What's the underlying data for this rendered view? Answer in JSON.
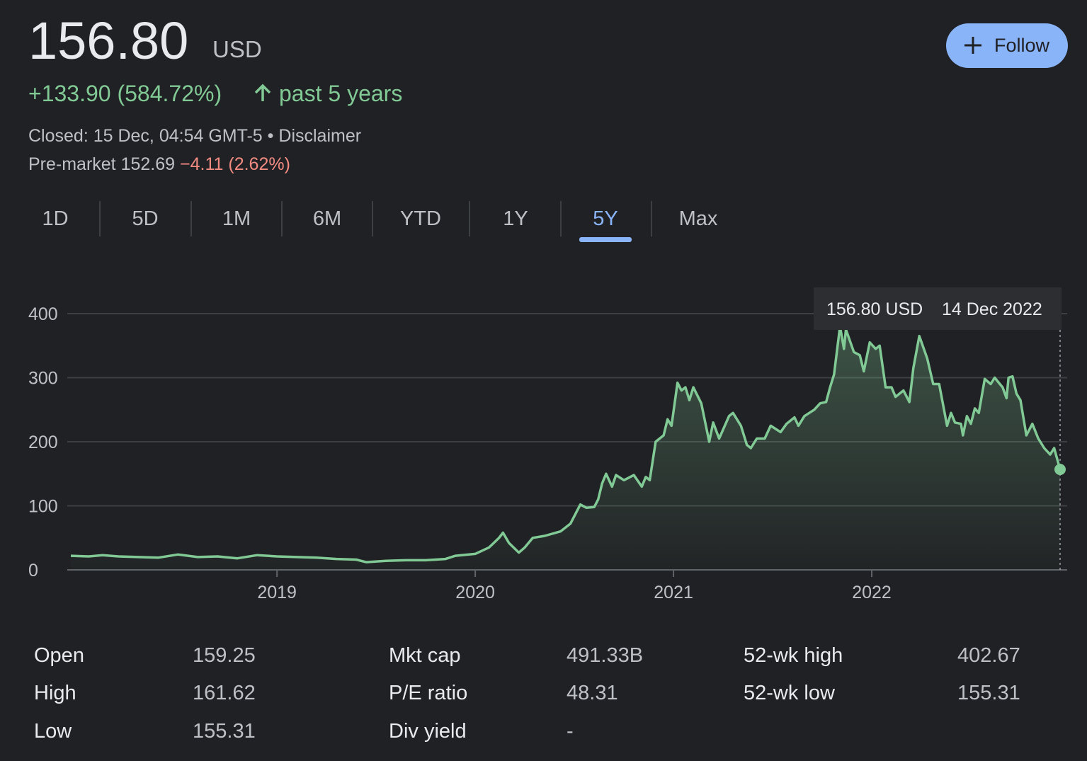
{
  "header": {
    "price": "156.80",
    "currency": "USD",
    "change": "+133.90 (584.72%)",
    "period": "past 5 years",
    "closed": "Closed: 15 Dec, 04:54 GMT-5",
    "separator": "•",
    "disclaimer": "Disclaimer",
    "premarket_label": "Pre-market",
    "premarket_price": "152.69",
    "premarket_change": "−4.11 (2.62%)"
  },
  "follow_button": "Follow",
  "tabs": {
    "items": [
      "1D",
      "5D",
      "1M",
      "6M",
      "YTD",
      "1Y",
      "5Y",
      "Max"
    ],
    "selected": 6
  },
  "chart_data": {
    "type": "line",
    "color": "#81c995",
    "grid": true,
    "xlim": [
      2017.96,
      2022.95
    ],
    "xticks": [
      2019,
      2020,
      2021,
      2022
    ],
    "ylim": [
      0,
      400
    ],
    "yticks": [
      0,
      100,
      200,
      300,
      400
    ],
    "tooltip": {
      "price": "156.80 USD",
      "date": "14 Dec 2022"
    },
    "x": [
      2017.96,
      2018.05,
      2018.12,
      2018.2,
      2018.3,
      2018.4,
      2018.5,
      2018.6,
      2018.7,
      2018.8,
      2018.9,
      2019.0,
      2019.1,
      2019.2,
      2019.3,
      2019.4,
      2019.45,
      2019.55,
      2019.65,
      2019.75,
      2019.85,
      2019.9,
      2020.0,
      2020.07,
      2020.12,
      2020.14,
      2020.17,
      2020.22,
      2020.25,
      2020.29,
      2020.35,
      2020.43,
      2020.48,
      2020.53,
      2020.56,
      2020.6,
      2020.62,
      2020.64,
      2020.66,
      2020.69,
      2020.71,
      2020.75,
      2020.8,
      2020.84,
      2020.86,
      2020.88,
      2020.91,
      2020.95,
      2020.97,
      2020.99,
      2021.02,
      2021.04,
      2021.06,
      2021.08,
      2021.1,
      2021.14,
      2021.18,
      2021.2,
      2021.23,
      2021.28,
      2021.3,
      2021.34,
      2021.37,
      2021.39,
      2021.42,
      2021.46,
      2021.49,
      2021.54,
      2021.57,
      2021.61,
      2021.63,
      2021.66,
      2021.71,
      2021.74,
      2021.77,
      2021.79,
      2021.81,
      2021.84,
      2021.86,
      2021.87,
      2021.91,
      2021.94,
      2021.96,
      2021.99,
      2022.02,
      2022.04,
      2022.07,
      2022.1,
      2022.12,
      2022.16,
      2022.19,
      2022.21,
      2022.24,
      2022.28,
      2022.31,
      2022.34,
      2022.38,
      2022.4,
      2022.42,
      2022.45,
      2022.46,
      2022.48,
      2022.5,
      2022.52,
      2022.54,
      2022.57,
      2022.6,
      2022.62,
      2022.66,
      2022.68,
      2022.69,
      2022.71,
      2022.73,
      2022.75,
      2022.78,
      2022.81,
      2022.84,
      2022.87,
      2022.9,
      2022.92,
      2022.95
    ],
    "values": [
      22,
      21,
      23,
      21,
      20,
      19,
      24,
      20,
      21,
      18,
      23,
      21,
      20,
      19,
      17,
      16,
      12,
      14,
      15,
      15,
      17,
      22,
      25,
      35,
      50,
      58,
      42,
      27,
      35,
      50,
      53,
      60,
      72,
      102,
      97,
      98,
      110,
      135,
      150,
      130,
      148,
      140,
      148,
      130,
      145,
      140,
      200,
      210,
      235,
      225,
      292,
      280,
      285,
      265,
      285,
      260,
      200,
      230,
      205,
      240,
      245,
      225,
      195,
      190,
      205,
      205,
      225,
      215,
      228,
      238,
      225,
      240,
      250,
      260,
      262,
      285,
      305,
      380,
      345,
      375,
      340,
      335,
      310,
      355,
      345,
      350,
      285,
      285,
      270,
      280,
      262,
      315,
      365,
      330,
      290,
      290,
      225,
      245,
      230,
      228,
      210,
      240,
      228,
      252,
      245,
      298,
      290,
      300,
      285,
      268,
      300,
      302,
      275,
      265,
      210,
      228,
      205,
      190,
      180,
      190,
      156.8
    ]
  },
  "stats": [
    [
      [
        "Open",
        "159.25"
      ],
      [
        "High",
        "161.62"
      ],
      [
        "Low",
        "155.31"
      ]
    ],
    [
      [
        "Mkt cap",
        "491.33B"
      ],
      [
        "P/E ratio",
        "48.31"
      ],
      [
        "Div yield",
        "-"
      ]
    ],
    [
      [
        "52-wk high",
        "402.67"
      ],
      [
        "52-wk low",
        "155.31"
      ]
    ]
  ]
}
